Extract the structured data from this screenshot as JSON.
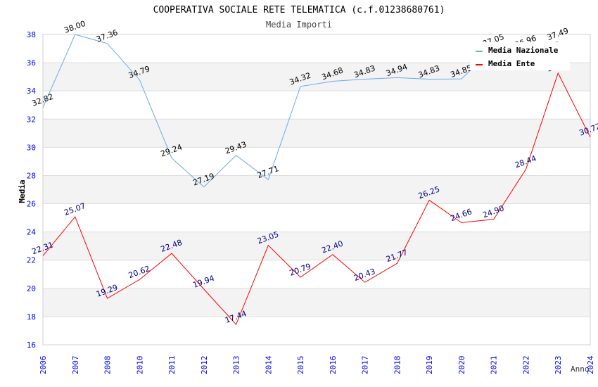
{
  "chart_data": {
    "type": "line",
    "title": "COOPERATIVA SOCIALE RETE TELEMATICA (c.f.01238680761)",
    "subtitle": "Media Importi",
    "xlabel": "Anno",
    "ylabel": "Media",
    "ylim": [
      16,
      38
    ],
    "yticks": [
      16,
      18,
      20,
      22,
      24,
      26,
      28,
      30,
      32,
      34,
      36,
      38
    ],
    "categories": [
      "2006",
      "2007",
      "2008",
      "2010",
      "2011",
      "2012",
      "2013",
      "2014",
      "2015",
      "2016",
      "2017",
      "2018",
      "2019",
      "2020",
      "2021",
      "2022",
      "2023",
      "2024"
    ],
    "legend_position": "top-right",
    "series": [
      {
        "name": "Media Nazionale",
        "color": "#6aaaee",
        "label_color": "#000000",
        "values": [
          32.82,
          38.0,
          37.36,
          34.79,
          29.24,
          27.19,
          29.43,
          27.71,
          34.32,
          34.68,
          34.83,
          34.94,
          34.83,
          34.85,
          37.05,
          36.96,
          37.49,
          null
        ]
      },
      {
        "name": "Media Ente",
        "color": "#ff0000",
        "label_color": "#000080",
        "values": [
          22.31,
          25.07,
          19.29,
          20.62,
          22.48,
          19.94,
          17.44,
          23.05,
          20.79,
          22.4,
          20.43,
          21.77,
          26.25,
          24.66,
          24.9,
          28.44,
          35.26,
          30.72
        ]
      }
    ]
  }
}
